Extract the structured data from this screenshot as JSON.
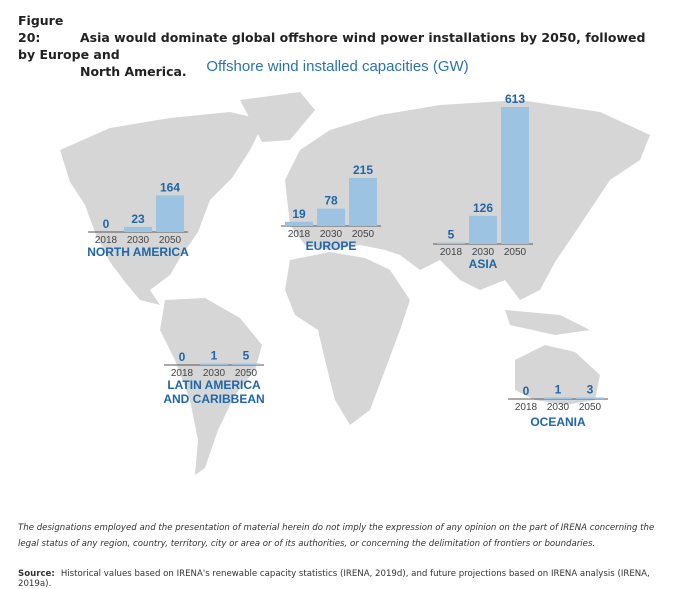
{
  "figure": {
    "number": "Figure 20:",
    "caption_line1": "Asia would dominate global offshore wind power installations by 2050, followed by Europe and",
    "caption_line2": "North America."
  },
  "chart_data": {
    "type": "bar",
    "title": "Offshore wind installed capacities (GW)",
    "categories": [
      "2018",
      "2030",
      "2050"
    ],
    "unit": "GW",
    "background": "world map",
    "bar_color": "#9dc3e2",
    "label_color": "#1f66a8",
    "regions": [
      {
        "name": "NORTH AMERICA",
        "values": [
          0,
          23,
          164
        ]
      },
      {
        "name": "EUROPE",
        "values": [
          19,
          78,
          215
        ]
      },
      {
        "name": "ASIA",
        "values": [
          5,
          126,
          613
        ]
      },
      {
        "name_line1": "LATIN AMERICA",
        "name_line2": "AND CARIBBEAN",
        "values": [
          0,
          1,
          5
        ]
      },
      {
        "name": "OCEANIA",
        "values": [
          0,
          1,
          3
        ]
      }
    ]
  },
  "disclaimer": "The designations employed and the presentation of material herein do not imply the expression of any opinion on the part of IRENA concerning the legal status of any region, country, territory, city or area or of its authorities, or concerning the delimitation of frontiers or boundaries.",
  "source": {
    "label": "Source:",
    "text": "Historical values based on IRENA's renewable capacity statistics (IRENA, 2019d), and future projections based on IRENA analysis (IRENA, 2019a)."
  }
}
